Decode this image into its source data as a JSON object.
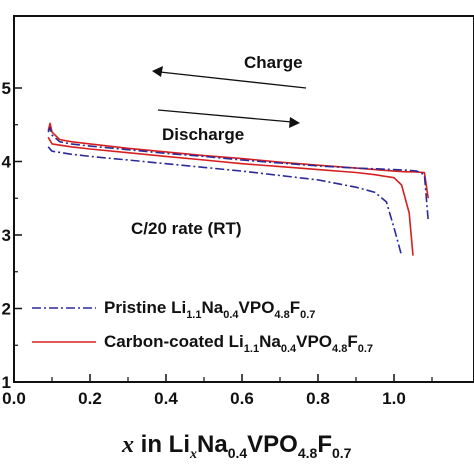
{
  "chart_data": {
    "type": "line",
    "xlabel": {
      "var": "x",
      "text_1": " in Li",
      "sub_1": "x",
      "text_2": "Na",
      "sub_2": "0.4",
      "text_3": "VPO",
      "sub_3": "4.8",
      "text_4": "F",
      "sub_4": "0.7"
    },
    "xlim": [
      0.0,
      1.1
    ],
    "ylim": [
      1.0,
      5.0
    ],
    "x_ticks": [
      "0.0",
      "0.2",
      "0.4",
      "0.6",
      "0.8",
      "1.0"
    ],
    "x_tick_values": [
      0.0,
      0.2,
      0.4,
      0.6,
      0.8,
      1.0
    ],
    "y_tick_values": [
      1,
      2,
      3,
      4,
      5
    ],
    "y_ticks_visible": [
      "0",
      "1",
      "2",
      "3",
      "4",
      "5"
    ],
    "annotations": {
      "charge": "Charge",
      "discharge": "Discharge",
      "rate": "C/20 rate (RT)"
    },
    "legend": {
      "position": "lower-left",
      "entries": [
        {
          "prefix": "Pristine Li",
          "s1": "1.1",
          "t2": "Na",
          "s2": "0.4",
          "t3": "VPO",
          "s3": "4.8",
          "t4": "F",
          "s4": "0.7",
          "color": "#2a2a9c",
          "style": "dashdot"
        },
        {
          "prefix": "Carbon-coated Li",
          "s1": "1.1",
          "t2": "Na",
          "s2": "0.4",
          "t3": "VPO",
          "s3": "4.8",
          "t4": "F",
          "s4": "0.7",
          "color": "#d62020",
          "style": "solid"
        }
      ]
    },
    "series": [
      {
        "color": "#d62020",
        "style": "solid",
        "x": [
          0.09,
          0.095,
          0.1,
          0.12,
          0.15,
          0.2,
          0.3,
          0.4,
          0.5,
          0.6,
          0.7,
          0.8,
          0.9,
          0.95,
          1.0,
          1.03,
          1.05,
          1.08,
          1.09
        ],
        "y": [
          4.42,
          4.52,
          4.4,
          4.3,
          4.27,
          4.24,
          4.18,
          4.13,
          4.08,
          4.04,
          3.99,
          3.95,
          3.91,
          3.89,
          3.87,
          3.86,
          3.86,
          3.85,
          3.5
        ]
      },
      {
        "color": "#d62020",
        "style": "solid",
        "x": [
          0.09,
          0.1,
          0.15,
          0.2,
          0.3,
          0.4,
          0.5,
          0.6,
          0.7,
          0.8,
          0.9,
          0.95,
          1.0,
          1.02,
          1.04,
          1.05
        ],
        "y": [
          4.33,
          4.24,
          4.2,
          4.17,
          4.12,
          4.07,
          4.02,
          3.97,
          3.93,
          3.89,
          3.85,
          3.82,
          3.78,
          3.68,
          3.3,
          2.72
        ]
      },
      {
        "color": "#2a2a9c",
        "style": "dashdot",
        "x": [
          0.09,
          0.095,
          0.1,
          0.12,
          0.15,
          0.2,
          0.3,
          0.4,
          0.5,
          0.6,
          0.7,
          0.8,
          0.9,
          0.95,
          1.0,
          1.04,
          1.06,
          1.08,
          1.09
        ],
        "y": [
          4.4,
          4.46,
          4.36,
          4.27,
          4.24,
          4.21,
          4.16,
          4.11,
          4.07,
          4.02,
          3.98,
          3.94,
          3.91,
          3.9,
          3.89,
          3.88,
          3.87,
          3.82,
          3.2
        ]
      },
      {
        "color": "#2a2a9c",
        "style": "dashdot",
        "x": [
          0.09,
          0.1,
          0.15,
          0.2,
          0.3,
          0.4,
          0.5,
          0.6,
          0.7,
          0.8,
          0.9,
          0.95,
          0.98,
          1.0,
          1.02
        ],
        "y": [
          4.2,
          4.14,
          4.1,
          4.07,
          4.02,
          3.97,
          3.92,
          3.87,
          3.81,
          3.75,
          3.65,
          3.58,
          3.45,
          3.1,
          2.72
        ]
      }
    ]
  }
}
